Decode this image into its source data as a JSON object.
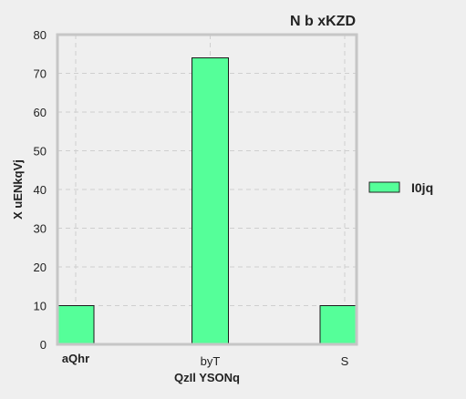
{
  "chart_data": {
    "type": "bar",
    "title": "N  b xKZD",
    "xlabel": "QzIl YSONq",
    "ylabel": "X uENkqVj",
    "categories": [
      "aQhr",
      "byT",
      "S"
    ],
    "series": [
      {
        "name": "I0jq",
        "values": [
          10,
          74,
          10
        ],
        "color": "#55ff99"
      }
    ],
    "ylim": [
      0,
      80
    ],
    "yticks": [
      0,
      10,
      20,
      30,
      40,
      50,
      60,
      70,
      80
    ],
    "grid": true,
    "legend": "right"
  }
}
